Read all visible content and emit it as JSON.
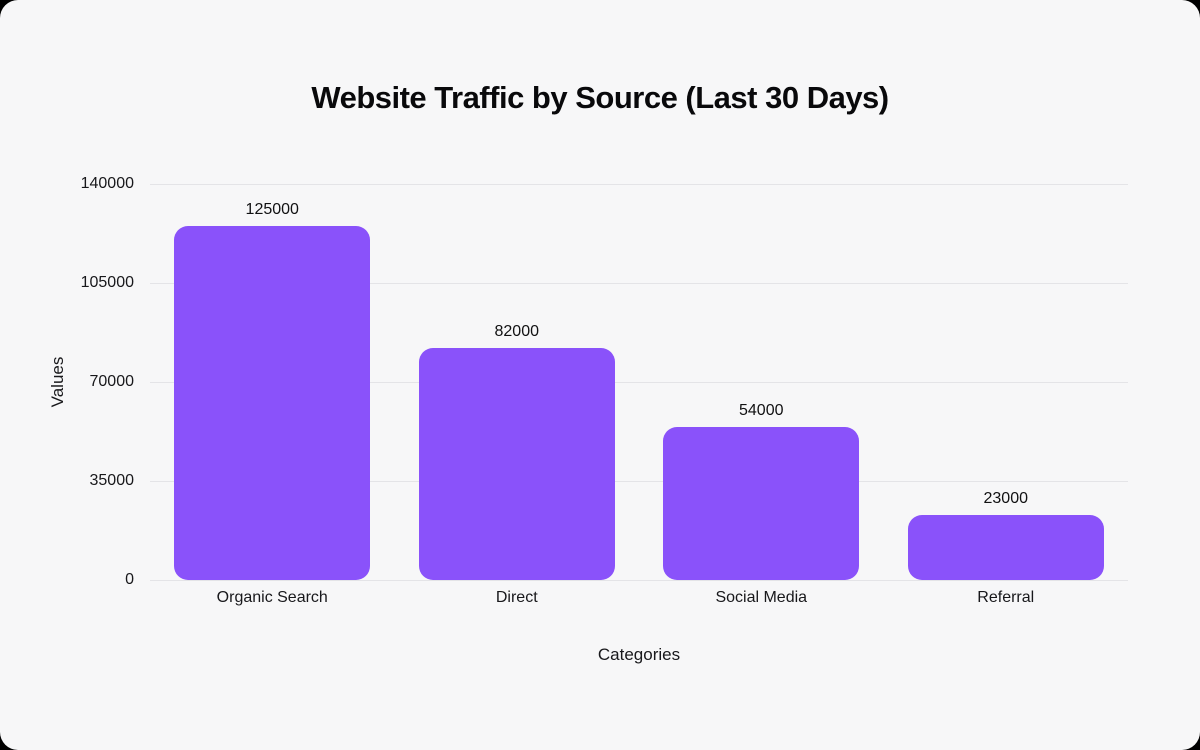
{
  "page": {
    "outer_background": "#000000",
    "card_background": "#F7F7F8",
    "gridline_color": "#E4E4E7",
    "text_color": "#18181B",
    "title_color": "#09090B"
  },
  "chart_data": {
    "type": "bar",
    "title": "Website Traffic by Source (Last 30 Days)",
    "categories": [
      "Organic Search",
      "Direct",
      "Social Media",
      "Referral"
    ],
    "values": [
      125000,
      82000,
      54000,
      23000
    ],
    "value_labels": [
      "125000",
      "82000",
      "54000",
      "23000"
    ],
    "xlabel": "Categories",
    "ylabel": "Values",
    "ylim": [
      0,
      140000
    ],
    "yticks": [
      0,
      35000,
      70000,
      105000,
      140000
    ],
    "ytick_labels": [
      "0",
      "35000",
      "70000",
      "105000",
      "140000"
    ],
    "bar_color": "#8A52FA",
    "grid": true,
    "legend": false,
    "bar_corner_radius": 14
  }
}
